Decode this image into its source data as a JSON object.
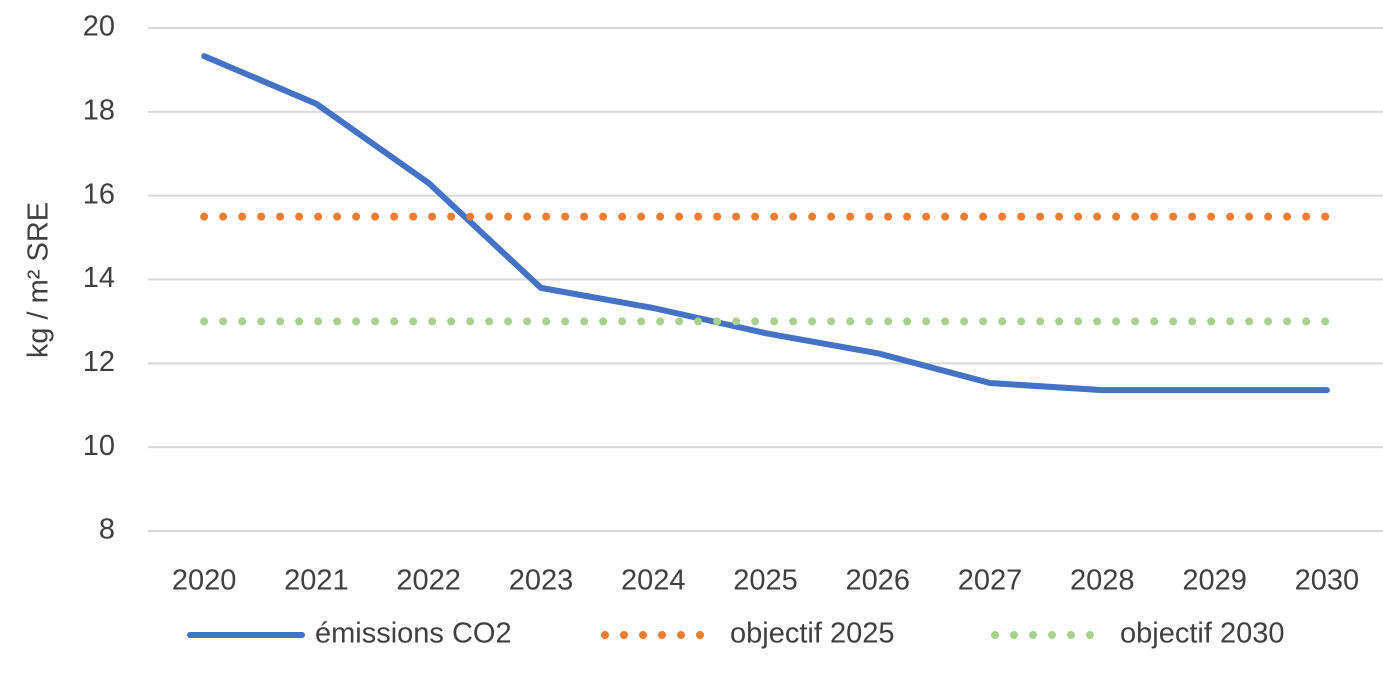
{
  "chart_data": {
    "type": "line",
    "y_label": "kg / m² SRE",
    "categories": [
      "2020",
      "2021",
      "2022",
      "2023",
      "2024",
      "2025",
      "2026",
      "2027",
      "2028",
      "2029",
      "2030"
    ],
    "series": [
      {
        "name": "émissions CO2",
        "color": "#4472c4",
        "line_style": "solid",
        "values": [
          19.33,
          18.19,
          16.3,
          13.8,
          13.32,
          12.72,
          12.24,
          11.53,
          11.36,
          11.36,
          11.36
        ]
      },
      {
        "name": "objectif 2025",
        "color": "#ed7d31",
        "line_style": "dotted",
        "values": [
          15.5,
          15.5,
          15.5,
          15.5,
          15.5,
          15.5,
          15.5,
          15.5,
          15.5,
          15.5,
          15.5
        ]
      },
      {
        "name": "objectif 2030",
        "color": "#a9d18e",
        "line_style": "dotted",
        "values": [
          13,
          13,
          13,
          13,
          13,
          13,
          13,
          13,
          13,
          13,
          13
        ]
      }
    ],
    "ylim": [
      8,
      20
    ],
    "yticks": [
      8,
      10,
      12,
      14,
      16,
      18,
      20
    ],
    "grid": true,
    "legend": "bottom"
  }
}
